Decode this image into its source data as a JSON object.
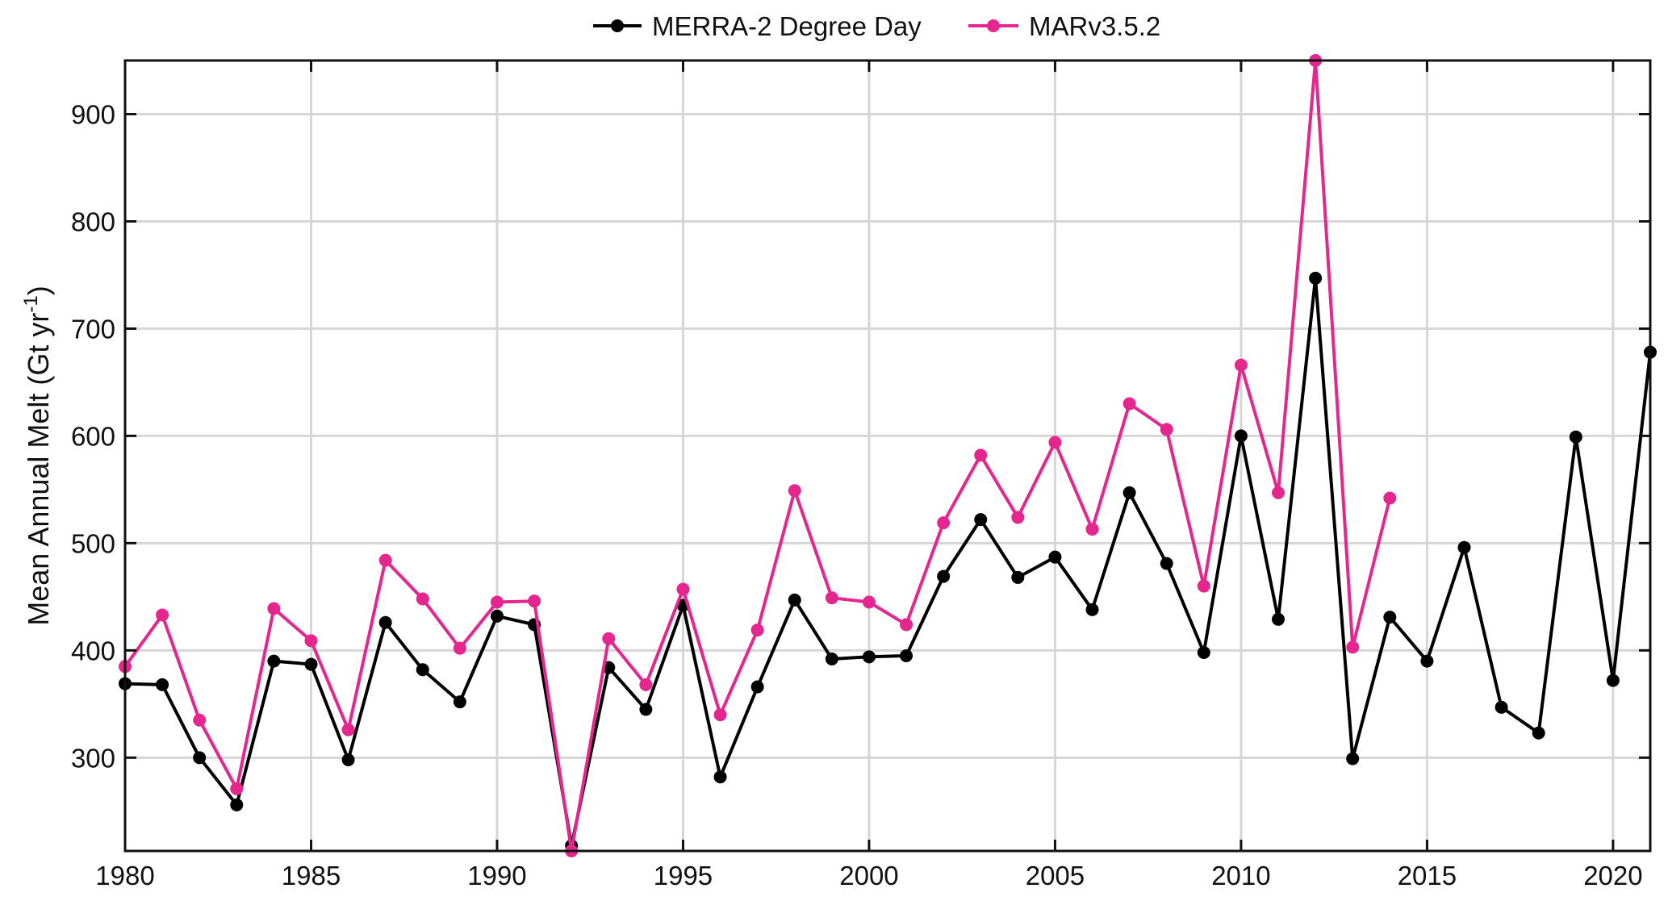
{
  "chart_data": {
    "type": "line",
    "title": "",
    "xlabel": "",
    "ylabel": "Mean Annual Melt (Gt yr",
    "ylabel_sup": "-1",
    "ylabel_suffix": ")",
    "xlim": [
      1980,
      2021
    ],
    "ylim": [
      213,
      950
    ],
    "x_ticks": [
      1980,
      1985,
      1990,
      1995,
      2000,
      2005,
      2010,
      2015,
      2020
    ],
    "y_ticks": [
      300,
      400,
      500,
      600,
      700,
      800,
      900
    ],
    "grid": true,
    "legend_position": "top-center, outside",
    "series": [
      {
        "name": "MERRA-2 Degree Day",
        "color": "#000000",
        "x": [
          1980,
          1981,
          1982,
          1983,
          1984,
          1985,
          1986,
          1987,
          1988,
          1989,
          1990,
          1991,
          1992,
          1993,
          1994,
          1995,
          1996,
          1997,
          1998,
          1999,
          2000,
          2001,
          2002,
          2003,
          2004,
          2005,
          2006,
          2007,
          2008,
          2009,
          2010,
          2011,
          2012,
          2013,
          2014,
          2015,
          2016,
          2017,
          2018,
          2019,
          2020,
          2021
        ],
        "values": [
          369,
          368,
          300,
          256,
          390,
          387,
          298,
          426,
          382,
          352,
          432,
          424,
          218,
          384,
          345,
          442,
          282,
          366,
          447,
          392,
          394,
          395,
          469,
          522,
          468,
          487,
          438,
          547,
          481,
          398,
          600,
          429,
          747,
          299,
          431,
          390,
          496,
          347,
          323,
          599,
          372,
          678
        ]
      },
      {
        "name": "MARv3.5.2",
        "color": "#e5268f",
        "x": [
          1980,
          1981,
          1982,
          1983,
          1984,
          1985,
          1986,
          1987,
          1988,
          1989,
          1990,
          1991,
          1992,
          1993,
          1994,
          1995,
          1996,
          1997,
          1998,
          1999,
          2000,
          2001,
          2002,
          2003,
          2004,
          2005,
          2006,
          2007,
          2008,
          2009,
          2010,
          2011,
          2012,
          2013,
          2014
        ],
        "values": [
          385,
          433,
          335,
          271,
          439,
          409,
          326,
          484,
          448,
          402,
          445,
          446,
          213,
          411,
          368,
          457,
          340,
          419,
          549,
          449,
          445,
          424,
          519,
          582,
          524,
          594,
          513,
          630,
          606,
          460,
          666,
          547,
          950,
          403,
          542
        ]
      }
    ]
  }
}
